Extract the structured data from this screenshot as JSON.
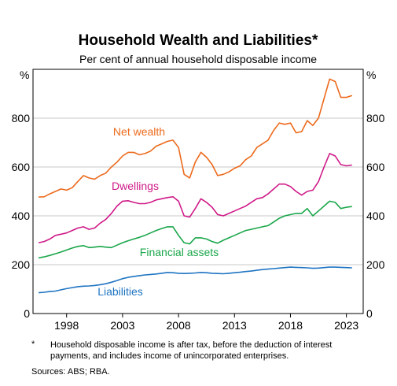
{
  "chart_data": {
    "type": "line",
    "title": "Household Wealth and Liabilities*",
    "subtitle": "Per cent of annual household disposable income",
    "y_unit": "%",
    "footnote_marker": "*",
    "footnote": "Household disposable income is after tax, before the deduction of interest payments, and includes income of unincorporated enterprises.",
    "sources": "Sources: ABS; RBA.",
    "x": [
      1995.5,
      1996,
      1996.5,
      1997,
      1997.5,
      1998,
      1998.5,
      1999,
      1999.5,
      2000,
      2000.5,
      2001,
      2001.5,
      2002,
      2002.5,
      2003,
      2003.5,
      2004,
      2004.5,
      2005,
      2005.5,
      2006,
      2006.5,
      2007,
      2007.5,
      2008,
      2008.5,
      2009,
      2009.5,
      2010,
      2010.5,
      2011,
      2011.5,
      2012,
      2012.5,
      2013,
      2013.5,
      2014,
      2014.5,
      2015,
      2015.5,
      2016,
      2016.5,
      2017,
      2017.5,
      2018,
      2018.5,
      2019,
      2019.5,
      2020,
      2020.5,
      2021,
      2021.5,
      2022,
      2022.5,
      2023,
      2023.5
    ],
    "series": [
      {
        "name": "Net wealth",
        "color": "#ec6a1c",
        "values": [
          477,
          478,
          490,
          500,
          510,
          505,
          515,
          540,
          565,
          555,
          550,
          565,
          575,
          600,
          620,
          645,
          660,
          660,
          650,
          655,
          665,
          685,
          695,
          705,
          710,
          680,
          570,
          555,
          620,
          660,
          640,
          610,
          565,
          570,
          580,
          595,
          605,
          630,
          645,
          680,
          695,
          710,
          750,
          780,
          775,
          780,
          740,
          745,
          790,
          770,
          800,
          880,
          960,
          950,
          885,
          885,
          893
        ]
      },
      {
        "name": "Dwellings",
        "color": "#cf1a88",
        "values": [
          290,
          295,
          305,
          320,
          325,
          330,
          340,
          350,
          355,
          345,
          350,
          370,
          385,
          410,
          440,
          460,
          462,
          455,
          450,
          450,
          455,
          465,
          470,
          475,
          478,
          460,
          400,
          395,
          430,
          470,
          455,
          435,
          405,
          400,
          410,
          420,
          430,
          440,
          455,
          470,
          475,
          490,
          510,
          530,
          530,
          520,
          500,
          485,
          500,
          505,
          540,
          600,
          655,
          645,
          610,
          605,
          608
        ]
      },
      {
        "name": "Financial assets",
        "color": "#1aa64a",
        "values": [
          228,
          232,
          238,
          245,
          252,
          260,
          268,
          275,
          278,
          270,
          272,
          275,
          272,
          270,
          280,
          290,
          298,
          305,
          312,
          320,
          330,
          340,
          348,
          355,
          355,
          320,
          290,
          285,
          310,
          310,
          305,
          295,
          288,
          300,
          310,
          320,
          330,
          340,
          345,
          350,
          355,
          360,
          375,
          390,
          400,
          405,
          410,
          410,
          430,
          400,
          420,
          440,
          460,
          455,
          430,
          435,
          438
        ]
      },
      {
        "name": "Liabilities",
        "color": "#1f74c2",
        "values": [
          85,
          87,
          90,
          92,
          97,
          102,
          106,
          110,
          112,
          113,
          115,
          118,
          122,
          128,
          135,
          143,
          148,
          152,
          155,
          158,
          160,
          162,
          165,
          168,
          167,
          165,
          164,
          165,
          166,
          168,
          167,
          165,
          164,
          163,
          165,
          167,
          169,
          172,
          174,
          177,
          180,
          182,
          184,
          186,
          188,
          190,
          189,
          188,
          187,
          185,
          186,
          188,
          190,
          190,
          189,
          188,
          187
        ]
      }
    ],
    "xlim": [
      1995,
      2024.5
    ],
    "xticks": [
      1998,
      2003,
      2008,
      2013,
      2018,
      2023
    ],
    "ylim": [
      0,
      1000
    ],
    "yticks": [
      0,
      200,
      400,
      600,
      800
    ],
    "grid": true
  }
}
